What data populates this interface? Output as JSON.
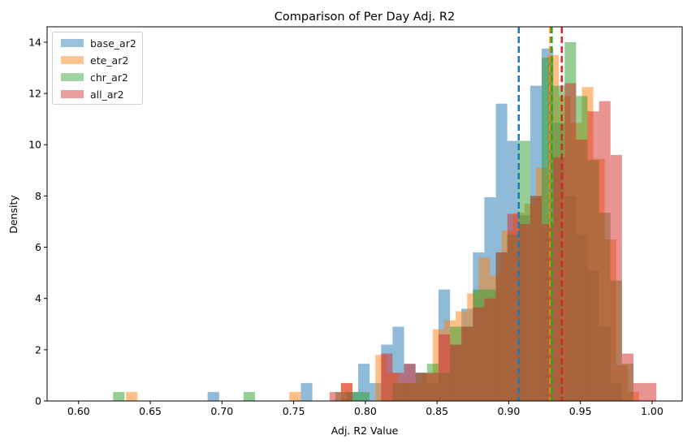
{
  "chart_data": {
    "type": "bar",
    "title": "Comparison of Per Day Adj. R2",
    "xlabel": "Adj. R2 Value",
    "ylabel": "Density",
    "xlim": [
      0.578,
      1.021
    ],
    "ylim": [
      0,
      14.6
    ],
    "xticks": [
      "0.60",
      "0.65",
      "0.70",
      "0.75",
      "0.80",
      "0.85",
      "0.90",
      "0.95",
      "1.00"
    ],
    "yticks": [
      "0",
      "2",
      "4",
      "6",
      "8",
      "10",
      "12",
      "14"
    ],
    "grid": false,
    "legend_position": "top-left",
    "series": [
      {
        "name": "base_ar2",
        "color": "#1f77b4",
        "mean": 0.907,
        "bins": [
          [
            0.69,
            0.698,
            0.35
          ],
          [
            0.755,
            0.763,
            0.7
          ],
          [
            0.787,
            0.795,
            0.35
          ],
          [
            0.795,
            0.803,
            1.45
          ],
          [
            0.803,
            0.811,
            0.7
          ],
          [
            0.811,
            0.819,
            2.2
          ],
          [
            0.819,
            0.827,
            2.9
          ],
          [
            0.827,
            0.835,
            1.45
          ],
          [
            0.835,
            0.843,
            1.1
          ],
          [
            0.843,
            0.851,
            0.7
          ],
          [
            0.851,
            0.859,
            4.35
          ],
          [
            0.859,
            0.867,
            2.2
          ],
          [
            0.867,
            0.875,
            3.6
          ],
          [
            0.875,
            0.883,
            5.8
          ],
          [
            0.883,
            0.891,
            7.95
          ],
          [
            0.891,
            0.899,
            11.6
          ],
          [
            0.899,
            0.907,
            10.15
          ],
          [
            0.907,
            0.915,
            7.25
          ],
          [
            0.915,
            0.923,
            12.3
          ],
          [
            0.923,
            0.931,
            13.75
          ],
          [
            0.931,
            0.939,
            10.85
          ],
          [
            0.939,
            0.947,
            8.0
          ],
          [
            0.947,
            0.955,
            6.5
          ],
          [
            0.955,
            0.963,
            5.1
          ],
          [
            0.963,
            0.971,
            2.9
          ],
          [
            0.971,
            0.979,
            0.7
          ]
        ]
      },
      {
        "name": "ete_ar2",
        "color": "#ff7f0e",
        "mean": 0.929,
        "bins": [
          [
            0.633,
            0.641,
            0.35
          ],
          [
            0.747,
            0.755,
            0.35
          ],
          [
            0.783,
            0.791,
            0.7
          ],
          [
            0.807,
            0.815,
            1.8
          ],
          [
            0.815,
            0.823,
            1.1
          ],
          [
            0.823,
            0.831,
            0.7
          ],
          [
            0.831,
            0.839,
            0.7
          ],
          [
            0.839,
            0.847,
            1.05
          ],
          [
            0.847,
            0.855,
            2.8
          ],
          [
            0.855,
            0.863,
            3.15
          ],
          [
            0.863,
            0.871,
            3.5
          ],
          [
            0.871,
            0.879,
            4.2
          ],
          [
            0.879,
            0.887,
            5.6
          ],
          [
            0.887,
            0.895,
            4.9
          ],
          [
            0.895,
            0.903,
            6.65
          ],
          [
            0.903,
            0.911,
            7.35
          ],
          [
            0.911,
            0.919,
            7.7
          ],
          [
            0.919,
            0.927,
            9.1
          ],
          [
            0.927,
            0.935,
            13.5
          ],
          [
            0.935,
            0.943,
            11.9
          ],
          [
            0.943,
            0.951,
            10.85
          ],
          [
            0.951,
            0.959,
            12.25
          ],
          [
            0.959,
            0.967,
            9.45
          ],
          [
            0.967,
            0.975,
            6.3
          ],
          [
            0.975,
            0.983,
            1.4
          ],
          [
            0.983,
            0.991,
            0.35
          ]
        ]
      },
      {
        "name": "chr_ar2",
        "color": "#2ca02c",
        "mean": 0.93,
        "bins": [
          [
            0.624,
            0.632,
            0.35
          ],
          [
            0.715,
            0.723,
            0.35
          ],
          [
            0.779,
            0.787,
            0.35
          ],
          [
            0.787,
            0.795,
            0.35
          ],
          [
            0.795,
            0.803,
            0.35
          ],
          [
            0.819,
            0.827,
            0.7
          ],
          [
            0.827,
            0.835,
            0.7
          ],
          [
            0.835,
            0.843,
            1.1
          ],
          [
            0.843,
            0.851,
            1.45
          ],
          [
            0.851,
            0.859,
            1.1
          ],
          [
            0.859,
            0.867,
            2.9
          ],
          [
            0.867,
            0.875,
            2.9
          ],
          [
            0.875,
            0.883,
            4.35
          ],
          [
            0.883,
            0.891,
            4.35
          ],
          [
            0.891,
            0.899,
            5.8
          ],
          [
            0.899,
            0.907,
            6.5
          ],
          [
            0.907,
            0.915,
            10.15
          ],
          [
            0.915,
            0.923,
            8.0
          ],
          [
            0.923,
            0.931,
            13.4
          ],
          [
            0.931,
            0.939,
            12.3
          ],
          [
            0.939,
            0.947,
            14.0
          ],
          [
            0.947,
            0.955,
            11.9
          ],
          [
            0.955,
            0.963,
            9.4
          ],
          [
            0.963,
            0.971,
            7.35
          ],
          [
            0.971,
            0.979,
            4.7
          ],
          [
            0.979,
            0.987,
            1.45
          ]
        ]
      },
      {
        "name": "all_ar2",
        "color": "#d62728",
        "mean": 0.937,
        "bins": [
          [
            0.775,
            0.783,
            0.35
          ],
          [
            0.783,
            0.791,
            0.7
          ],
          [
            0.811,
            0.819,
            1.85
          ],
          [
            0.819,
            0.827,
            1.1
          ],
          [
            0.827,
            0.835,
            1.45
          ],
          [
            0.835,
            0.843,
            1.1
          ],
          [
            0.843,
            0.851,
            1.1
          ],
          [
            0.851,
            0.859,
            2.6
          ],
          [
            0.859,
            0.867,
            2.2
          ],
          [
            0.867,
            0.875,
            2.9
          ],
          [
            0.875,
            0.883,
            3.65
          ],
          [
            0.883,
            0.891,
            4.0
          ],
          [
            0.891,
            0.899,
            5.8
          ],
          [
            0.899,
            0.907,
            7.3
          ],
          [
            0.907,
            0.915,
            6.9
          ],
          [
            0.915,
            0.923,
            8.0
          ],
          [
            0.923,
            0.931,
            6.9
          ],
          [
            0.931,
            0.939,
            9.5
          ],
          [
            0.939,
            0.947,
            12.4
          ],
          [
            0.947,
            0.955,
            10.2
          ],
          [
            0.955,
            0.963,
            11.3
          ],
          [
            0.963,
            0.971,
            11.7
          ],
          [
            0.971,
            0.979,
            9.6
          ],
          [
            0.979,
            0.987,
            1.85
          ],
          [
            0.987,
            0.995,
            0.7
          ],
          [
            0.995,
            1.003,
            0.7
          ]
        ]
      }
    ]
  }
}
